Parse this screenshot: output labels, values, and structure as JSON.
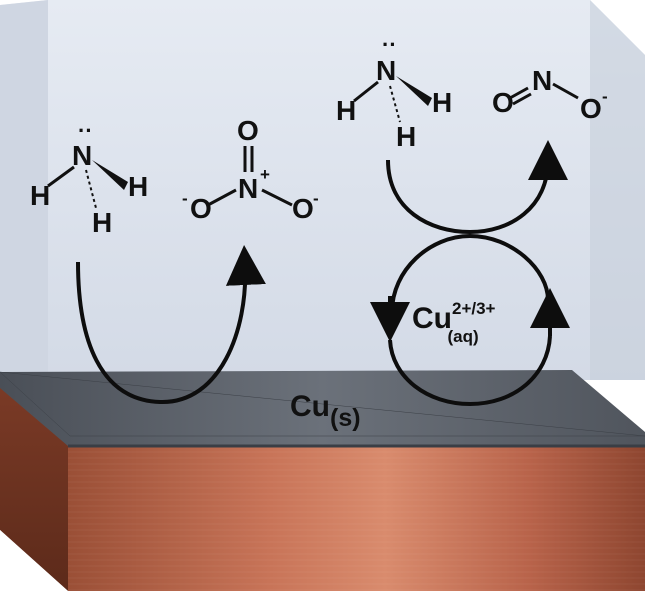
{
  "left_cycle": {
    "reactant": {
      "central_atom": "N",
      "lone_pair": "··",
      "h1": "H",
      "h2": "H",
      "h3": "H"
    },
    "product": {
      "top_o": "O",
      "central_atom": "N",
      "plus": "+",
      "left_o": "O",
      "left_charge": "-",
      "right_o": "O",
      "right_charge": "-"
    }
  },
  "right_cycle": {
    "reactant": {
      "central_atom": "N",
      "lone_pair": "··",
      "h1": "H",
      "h2": "H",
      "h3": "H"
    },
    "product": {
      "o1": "O",
      "central_atom": "N",
      "o2": "O",
      "o2_charge": "-"
    },
    "ion": {
      "base": "Cu",
      "sup": "2+/3+",
      "sub": "(aq)"
    }
  },
  "surface": {
    "base": "Cu",
    "sub": "(s)"
  },
  "colors": {
    "water": "#dfe5ef",
    "water_side": "#c9d0dc",
    "surface": "#5a6068",
    "copper": "#b9654a",
    "arrow": "#0d0d0d"
  }
}
